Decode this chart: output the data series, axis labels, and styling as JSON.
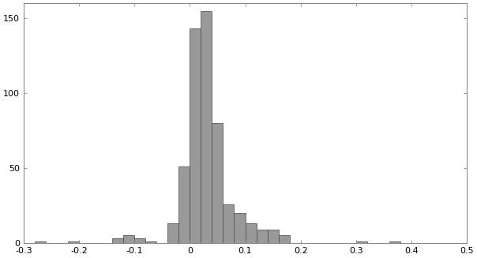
{
  "xlim": [
    -0.3,
    0.5
  ],
  "ylim": [
    0,
    160
  ],
  "xticks": [
    -0.3,
    -0.2,
    -0.1,
    0.0,
    0.1,
    0.2,
    0.3,
    0.4,
    0.5
  ],
  "yticks": [
    0,
    50,
    100,
    150
  ],
  "bar_color": "#999999",
  "bar_edge_color": "#444444",
  "bar_edge_width": 0.5,
  "background_color": "#ffffff",
  "bin_edges": [
    -0.28,
    -0.26,
    -0.24,
    -0.22,
    -0.2,
    -0.18,
    -0.16,
    -0.14,
    -0.12,
    -0.1,
    -0.08,
    -0.06,
    -0.04,
    -0.02,
    0.0,
    0.02,
    0.04,
    0.06,
    0.08,
    0.1,
    0.12,
    0.14,
    0.16,
    0.18,
    0.2,
    0.22,
    0.24,
    0.26,
    0.28,
    0.3,
    0.32,
    0.34,
    0.36,
    0.38,
    0.4,
    0.42,
    0.44,
    0.46
  ],
  "bar_heights": [
    1,
    0,
    0,
    1,
    0,
    0,
    0,
    3,
    5,
    3,
    1,
    0,
    13,
    51,
    143,
    155,
    80,
    26,
    20,
    13,
    9,
    9,
    5,
    0,
    0,
    0,
    0,
    0,
    0,
    1,
    0,
    0,
    1,
    0,
    0,
    0,
    0
  ]
}
